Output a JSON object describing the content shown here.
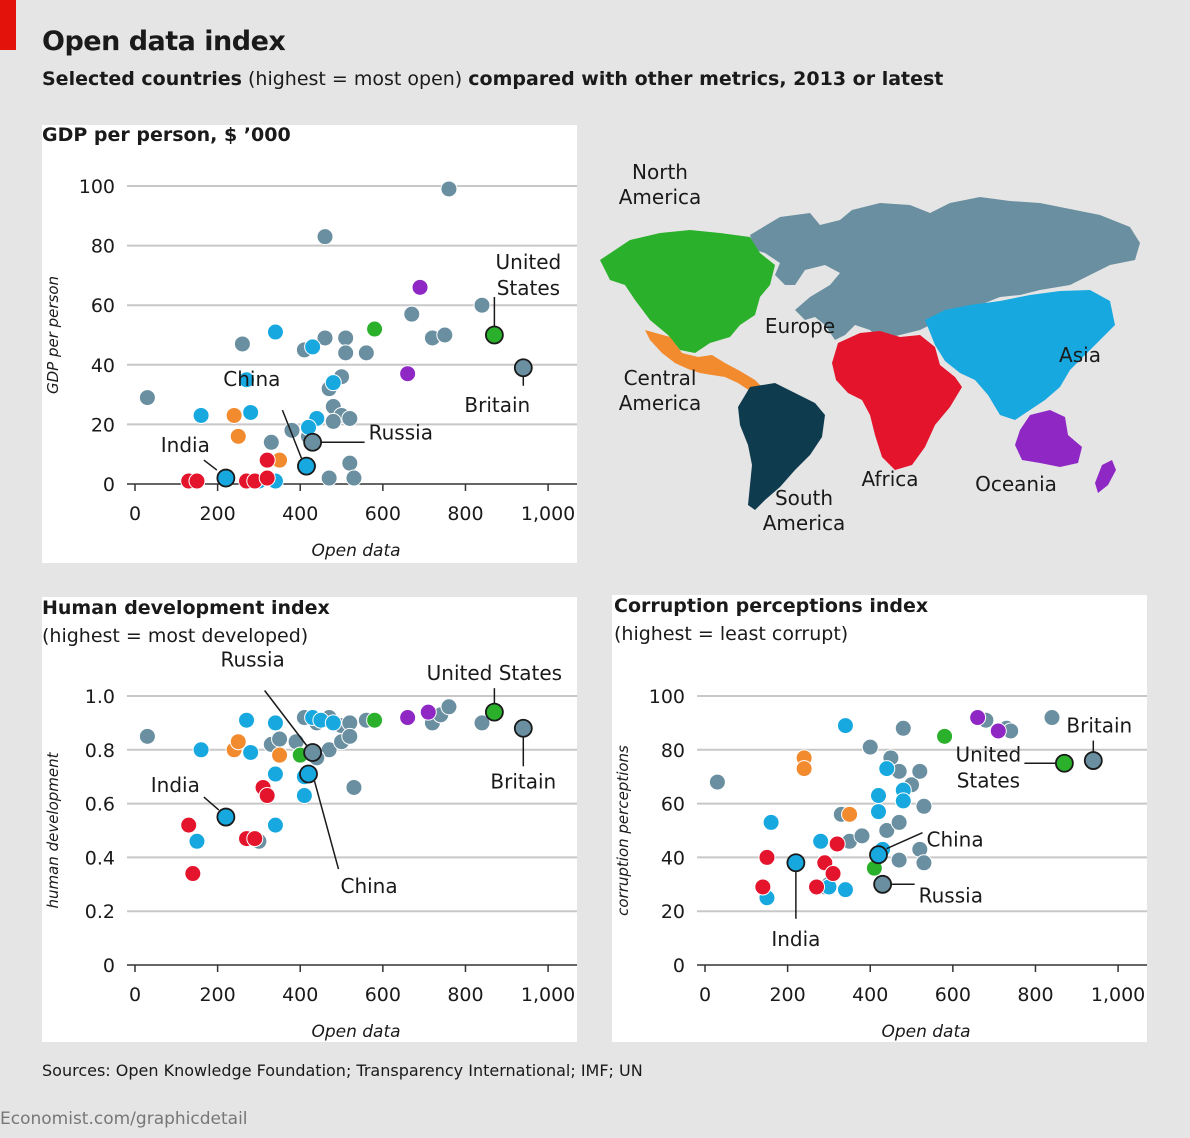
{
  "header": {
    "title": "Open data index",
    "subtitle_bold": "Selected countries",
    "subtitle_normal": "(highest = most open)",
    "subtitle_bold2": "compared with other metrics, 2013 or latest"
  },
  "colors": {
    "north_america": "#2ab02a",
    "central_america": "#f28a2e",
    "south_america": "#0f3b4f",
    "europe": "#6a8fa0",
    "africa": "#e3142c",
    "asia": "#17a8e0",
    "oceania": "#8f27c4"
  },
  "map": {
    "labels": {
      "north_america_1": "North",
      "north_america_2": "America",
      "central_america_1": "Central",
      "central_america_2": "America",
      "south_america_1": "South",
      "south_america_2": "America",
      "europe": "Europe",
      "africa": "Africa",
      "asia": "Asia",
      "oceania": "Oceania"
    }
  },
  "chart_data": [
    {
      "id": "gdp",
      "type": "scatter",
      "title": "GDP per person, $ ’000",
      "subtitle": "",
      "xlabel": "Open data",
      "ylabel": "GDP per person",
      "xlim": [
        0,
        1070
      ],
      "ylim": [
        0,
        100
      ],
      "xticks": [
        0,
        200,
        400,
        600,
        800,
        1000
      ],
      "xtick_labels": [
        "0",
        "200",
        "400",
        "600",
        "800",
        "1,000"
      ],
      "yticks": [
        0,
        20,
        40,
        60,
        80,
        100
      ],
      "ytick_labels": [
        "0",
        "20",
        "40",
        "60",
        "80",
        "100"
      ],
      "points": [
        [
          30,
          29,
          "europe"
        ],
        [
          460,
          83,
          "europe"
        ],
        [
          760,
          99,
          "europe"
        ],
        [
          840,
          60,
          "europe"
        ],
        [
          720,
          49,
          "europe"
        ],
        [
          750,
          50,
          "europe"
        ],
        [
          670,
          57,
          "europe"
        ],
        [
          260,
          47,
          "europe"
        ],
        [
          410,
          45,
          "europe"
        ],
        [
          460,
          49,
          "europe"
        ],
        [
          510,
          49,
          "europe"
        ],
        [
          510,
          44,
          "europe"
        ],
        [
          560,
          44,
          "europe"
        ],
        [
          470,
          32,
          "europe"
        ],
        [
          500,
          36,
          "europe"
        ],
        [
          480,
          26,
          "europe"
        ],
        [
          500,
          23,
          "europe"
        ],
        [
          520,
          22,
          "europe"
        ],
        [
          480,
          21,
          "europe"
        ],
        [
          330,
          14,
          "europe"
        ],
        [
          380,
          18,
          "europe"
        ],
        [
          420,
          16,
          "europe"
        ],
        [
          420,
          6,
          "europe"
        ],
        [
          470,
          2,
          "europe"
        ],
        [
          520,
          7,
          "europe"
        ],
        [
          530,
          2,
          "europe"
        ],
        [
          300,
          1,
          "europe"
        ],
        [
          160,
          23,
          "asia"
        ],
        [
          270,
          35,
          "asia"
        ],
        [
          280,
          24,
          "asia"
        ],
        [
          340,
          51,
          "asia"
        ],
        [
          430,
          46,
          "asia"
        ],
        [
          480,
          34,
          "asia"
        ],
        [
          440,
          22,
          "asia"
        ],
        [
          420,
          19,
          "asia"
        ],
        [
          340,
          1,
          "asia"
        ],
        [
          300,
          1,
          "asia"
        ],
        [
          240,
          23,
          "central_america"
        ],
        [
          250,
          16,
          "central_america"
        ],
        [
          350,
          8,
          "central_america"
        ],
        [
          580,
          52,
          "north_america"
        ],
        [
          690,
          66,
          "oceania"
        ],
        [
          660,
          37,
          "oceania"
        ],
        [
          130,
          1,
          "africa"
        ],
        [
          150,
          1,
          "africa"
        ],
        [
          270,
          1,
          "africa"
        ],
        [
          290,
          1,
          "africa"
        ],
        [
          320,
          2,
          "africa"
        ],
        [
          320,
          8,
          "africa"
        ]
      ],
      "highlighted": [
        {
          "x": 220,
          "y": 2,
          "region": "asia",
          "label": "India"
        },
        {
          "x": 415,
          "y": 6,
          "region": "asia",
          "label": "China"
        },
        {
          "x": 430,
          "y": 14,
          "region": "europe",
          "label": "Russia"
        },
        {
          "x": 870,
          "y": 50,
          "region": "north_america",
          "label": "United States"
        },
        {
          "x": 940,
          "y": 39,
          "region": "europe",
          "label": "Britain"
        }
      ]
    },
    {
      "id": "hdi",
      "type": "scatter",
      "title": "Human development index",
      "subtitle": "(highest = most developed)",
      "xlabel": "Open data",
      "ylabel": "human development",
      "xlim": [
        0,
        1070
      ],
      "ylim": [
        0,
        1.0
      ],
      "xticks": [
        0,
        200,
        400,
        600,
        800,
        1000
      ],
      "xtick_labels": [
        "0",
        "200",
        "400",
        "600",
        "800",
        "1,000"
      ],
      "yticks": [
        0,
        0.2,
        0.4,
        0.6,
        0.8,
        1.0
      ],
      "ytick_labels": [
        "0",
        "0.2",
        "0.4",
        "0.6",
        "0.8",
        "1.0"
      ],
      "points": [
        [
          30,
          0.85,
          "europe"
        ],
        [
          330,
          0.82,
          "europe"
        ],
        [
          350,
          0.84,
          "europe"
        ],
        [
          390,
          0.83,
          "europe"
        ],
        [
          410,
          0.92,
          "europe"
        ],
        [
          440,
          0.9,
          "europe"
        ],
        [
          470,
          0.92,
          "europe"
        ],
        [
          500,
          0.89,
          "europe"
        ],
        [
          520,
          0.9,
          "europe"
        ],
        [
          560,
          0.91,
          "europe"
        ],
        [
          720,
          0.9,
          "europe"
        ],
        [
          740,
          0.93,
          "europe"
        ],
        [
          760,
          0.96,
          "europe"
        ],
        [
          840,
          0.9,
          "europe"
        ],
        [
          470,
          0.8,
          "europe"
        ],
        [
          500,
          0.83,
          "europe"
        ],
        [
          520,
          0.85,
          "europe"
        ],
        [
          530,
          0.66,
          "europe"
        ],
        [
          440,
          0.77,
          "europe"
        ],
        [
          290,
          0.47,
          "europe"
        ],
        [
          300,
          0.46,
          "europe"
        ],
        [
          160,
          0.8,
          "asia"
        ],
        [
          270,
          0.91,
          "asia"
        ],
        [
          280,
          0.79,
          "asia"
        ],
        [
          340,
          0.9,
          "asia"
        ],
        [
          430,
          0.92,
          "asia"
        ],
        [
          450,
          0.91,
          "asia"
        ],
        [
          480,
          0.9,
          "asia"
        ],
        [
          340,
          0.71,
          "asia"
        ],
        [
          340,
          0.52,
          "asia"
        ],
        [
          150,
          0.46,
          "asia"
        ],
        [
          410,
          0.63,
          "asia"
        ],
        [
          410,
          0.7,
          "asia"
        ],
        [
          240,
          0.8,
          "central_america"
        ],
        [
          250,
          0.83,
          "central_america"
        ],
        [
          350,
          0.78,
          "central_america"
        ],
        [
          400,
          0.78,
          "north_america"
        ],
        [
          580,
          0.91,
          "north_america"
        ],
        [
          660,
          0.92,
          "oceania"
        ],
        [
          710,
          0.94,
          "oceania"
        ],
        [
          130,
          0.52,
          "africa"
        ],
        [
          140,
          0.34,
          "africa"
        ],
        [
          270,
          0.47,
          "africa"
        ],
        [
          290,
          0.47,
          "africa"
        ],
        [
          310,
          0.66,
          "africa"
        ],
        [
          320,
          0.63,
          "africa"
        ]
      ],
      "highlighted": [
        {
          "x": 220,
          "y": 0.55,
          "region": "asia",
          "label": "India"
        },
        {
          "x": 420,
          "y": 0.71,
          "region": "asia",
          "label": "China"
        },
        {
          "x": 430,
          "y": 0.79,
          "region": "europe",
          "label": "Russia"
        },
        {
          "x": 870,
          "y": 0.94,
          "region": "north_america",
          "label": "United States"
        },
        {
          "x": 940,
          "y": 0.88,
          "region": "europe",
          "label": "Britain"
        }
      ]
    },
    {
      "id": "cpi",
      "type": "scatter",
      "title": "Corruption perceptions index",
      "subtitle": "(highest = least corrupt)",
      "xlabel": "Open data",
      "ylabel": "corruption perceptions",
      "xlim": [
        0,
        1070
      ],
      "ylim": [
        0,
        100
      ],
      "xticks": [
        0,
        200,
        400,
        600,
        800,
        1000
      ],
      "xtick_labels": [
        "0",
        "200",
        "400",
        "600",
        "800",
        "1,000"
      ],
      "yticks": [
        0,
        20,
        40,
        60,
        80,
        100
      ],
      "ytick_labels": [
        "0",
        "20",
        "40",
        "60",
        "80",
        "100"
      ],
      "points": [
        [
          30,
          68,
          "europe"
        ],
        [
          400,
          81,
          "europe"
        ],
        [
          480,
          88,
          "europe"
        ],
        [
          680,
          91,
          "europe"
        ],
        [
          730,
          88,
          "europe"
        ],
        [
          840,
          92,
          "europe"
        ],
        [
          580,
          85,
          "europe"
        ],
        [
          740,
          87,
          "europe"
        ],
        [
          450,
          77,
          "europe"
        ],
        [
          470,
          72,
          "europe"
        ],
        [
          500,
          67,
          "europe"
        ],
        [
          520,
          72,
          "europe"
        ],
        [
          530,
          59,
          "europe"
        ],
        [
          330,
          56,
          "europe"
        ],
        [
          350,
          46,
          "europe"
        ],
        [
          380,
          48,
          "europe"
        ],
        [
          440,
          50,
          "europe"
        ],
        [
          470,
          53,
          "europe"
        ],
        [
          520,
          43,
          "europe"
        ],
        [
          530,
          38,
          "europe"
        ],
        [
          470,
          39,
          "europe"
        ],
        [
          290,
          29,
          "europe"
        ],
        [
          300,
          30,
          "europe"
        ],
        [
          160,
          53,
          "asia"
        ],
        [
          280,
          46,
          "asia"
        ],
        [
          340,
          89,
          "asia"
        ],
        [
          440,
          73,
          "asia"
        ],
        [
          480,
          65,
          "asia"
        ],
        [
          420,
          63,
          "asia"
        ],
        [
          480,
          61,
          "asia"
        ],
        [
          420,
          57,
          "asia"
        ],
        [
          430,
          43,
          "asia"
        ],
        [
          300,
          29,
          "asia"
        ],
        [
          340,
          28,
          "asia"
        ],
        [
          150,
          25,
          "asia"
        ],
        [
          240,
          77,
          "central_america"
        ],
        [
          240,
          73,
          "central_america"
        ],
        [
          350,
          56,
          "central_america"
        ],
        [
          580,
          85,
          "north_america"
        ],
        [
          410,
          36,
          "north_america"
        ],
        [
          660,
          92,
          "oceania"
        ],
        [
          710,
          87,
          "oceania"
        ],
        [
          140,
          29,
          "africa"
        ],
        [
          150,
          40,
          "africa"
        ],
        [
          270,
          29,
          "africa"
        ],
        [
          290,
          38,
          "africa"
        ],
        [
          310,
          34,
          "africa"
        ],
        [
          320,
          45,
          "africa"
        ]
      ],
      "highlighted": [
        {
          "x": 220,
          "y": 38,
          "region": "asia",
          "label": "India"
        },
        {
          "x": 420,
          "y": 41,
          "region": "asia",
          "label": "China"
        },
        {
          "x": 430,
          "y": 30,
          "region": "europe",
          "label": "Russia"
        },
        {
          "x": 870,
          "y": 75,
          "region": "north_america",
          "label": "United States"
        },
        {
          "x": 940,
          "y": 76,
          "region": "europe",
          "label": "Britain"
        }
      ]
    }
  ],
  "gdp_labels": {
    "india": "India",
    "china": "China",
    "russia": "Russia",
    "us1": "United",
    "us2": "States",
    "britain": "Britain"
  },
  "hdi_labels": {
    "india": "India",
    "china": "China",
    "russia": "Russia",
    "us": "United States",
    "britain": "Britain"
  },
  "cpi_labels": {
    "india": "India",
    "china": "China",
    "russia": "Russia",
    "us1": "United",
    "us2": "States",
    "britain": "Britain"
  },
  "footer": {
    "sources": "Sources: Open Knowledge Foundation; Transparency International; IMF; UN",
    "credit": "Economist.com/graphicdetail"
  }
}
